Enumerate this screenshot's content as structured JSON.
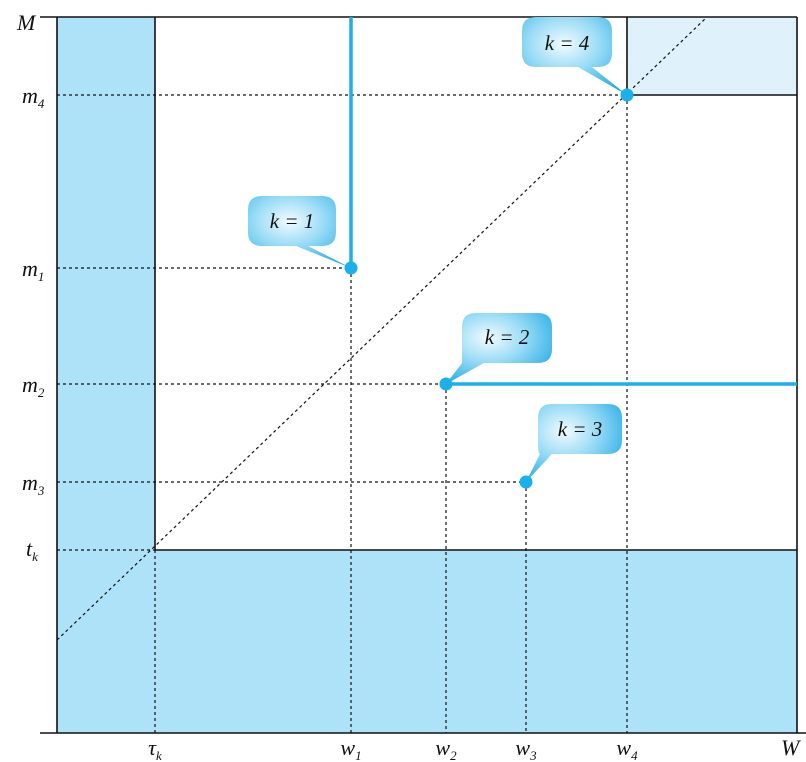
{
  "axes": {
    "x_end_label": "W",
    "y_end_label": "M",
    "x_ticks": [
      {
        "id": "tau",
        "main": "τ",
        "sub": "k"
      },
      {
        "id": "w1",
        "main": "w",
        "sub": "1"
      },
      {
        "id": "w2",
        "main": "w",
        "sub": "2"
      },
      {
        "id": "w3",
        "main": "w",
        "sub": "3"
      },
      {
        "id": "w4",
        "main": "w",
        "sub": "4"
      }
    ],
    "y_ticks": [
      {
        "id": "m4",
        "main": "m",
        "sub": "4"
      },
      {
        "id": "m1",
        "main": "m",
        "sub": "1"
      },
      {
        "id": "m2",
        "main": "m",
        "sub": "2"
      },
      {
        "id": "m3",
        "main": "m",
        "sub": "3"
      },
      {
        "id": "tk",
        "main": "t",
        "sub": "k"
      }
    ]
  },
  "callouts": [
    {
      "id": "k1",
      "label": "k = 1"
    },
    {
      "id": "k2",
      "label": "k = 2"
    },
    {
      "id": "k3",
      "label": "k = 3"
    },
    {
      "id": "k4",
      "label": "k = 4"
    }
  ],
  "colors": {
    "shaded_region": "#aee2f8",
    "light_region": "#dff2fc",
    "accent_line": "#1ab0ea",
    "dot": "#1ab0ea",
    "bubble_light": "#e6f7fe",
    "bubble_dark": "#22b3ea"
  }
}
